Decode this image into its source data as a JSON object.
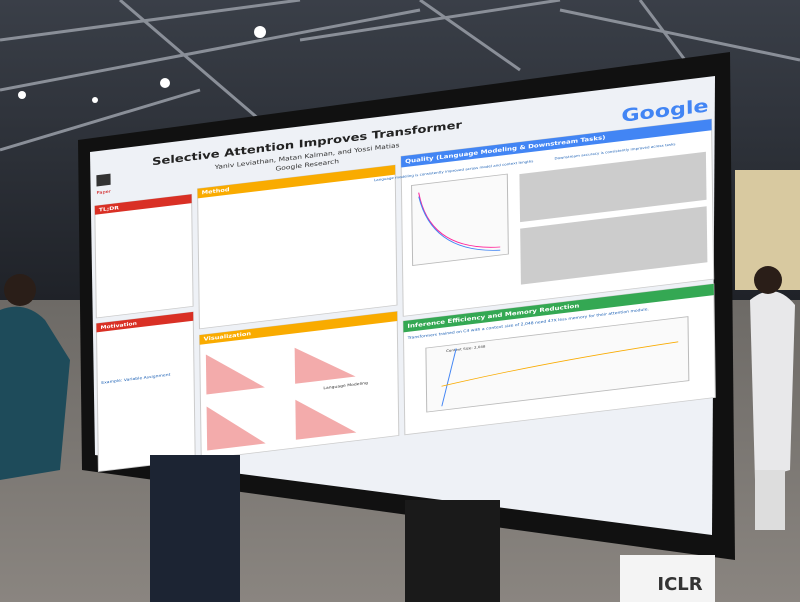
{
  "poster": {
    "title": "Selective Attention Improves Transformer",
    "authors": "Yaniv Leviathan, Matan Kalman, and Yossi Matias",
    "affiliation": "Google Research",
    "logo": "Google",
    "paper_label": "Paper",
    "sections": {
      "tldr": "TL;DR",
      "motivation": "Motivation",
      "method": "Method",
      "visualization": "Visualization",
      "quality": "Quality (Language Modeling & Downstream Tasks)",
      "efficiency": "Inference Efficiency and Memory Reduction"
    },
    "notes": {
      "lm": "Language modeling is consistently improved across model and context lengths",
      "downstream": "Downstream accuracy is consistently improved across tasks",
      "memory": "Transformers trained on C4 with a context size of 2,048 need 47X less memory for their attention module.",
      "context": "Context Size: 2,048",
      "example": "Example: Variable Assignment",
      "lm_panel": "Language Modeling"
    }
  },
  "banner": "ICLR"
}
